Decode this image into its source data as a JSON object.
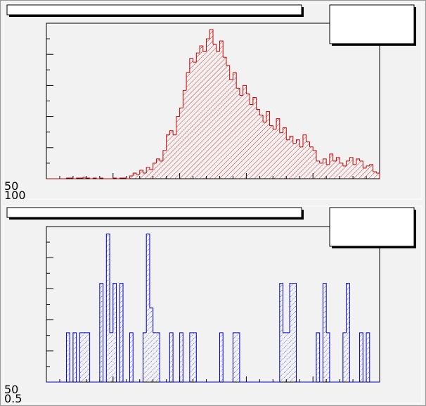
{
  "chart_data": [
    {
      "type": "histogram",
      "color": "#cc0000",
      "corner_labels": [
        "50",
        "100"
      ],
      "xlim": [
        0,
        100
      ],
      "ylim": [
        0,
        220
      ],
      "bins": [
        0,
        1,
        2,
        3,
        4,
        5,
        6,
        7,
        8,
        9,
        10,
        11,
        12,
        13,
        14,
        15,
        16,
        17,
        18,
        19,
        20,
        21,
        22,
        23,
        24,
        25,
        26,
        27,
        28,
        29,
        30,
        31,
        32,
        33,
        34,
        35,
        36,
        37,
        38,
        39,
        40,
        41,
        42,
        43,
        44,
        45,
        46,
        47,
        48,
        49,
        50,
        51,
        52,
        53,
        54,
        55,
        56,
        57,
        58,
        59,
        60,
        61,
        62,
        63,
        64,
        65,
        66,
        67,
        68,
        69,
        70,
        71,
        72,
        73,
        74,
        75,
        76,
        77,
        78,
        79,
        80,
        81,
        82,
        83,
        84,
        85,
        86,
        87,
        88,
        89,
        90,
        91,
        92,
        93,
        94,
        95,
        96,
        97,
        98,
        99,
        100
      ],
      "counts": [
        0,
        0,
        0,
        0,
        0,
        0,
        1,
        1,
        0,
        1,
        1,
        2,
        1,
        0,
        1,
        0,
        1,
        0,
        0,
        0,
        1,
        0,
        1,
        1,
        0,
        4,
        8,
        6,
        12,
        8,
        16,
        13,
        22,
        28,
        25,
        40,
        62,
        68,
        62,
        88,
        100,
        125,
        150,
        170,
        165,
        178,
        188,
        180,
        198,
        211,
        190,
        180,
        195,
        172,
        160,
        140,
        150,
        128,
        118,
        132,
        120,
        105,
        115,
        98,
        90,
        80,
        95,
        75,
        70,
        85,
        65,
        72,
        55,
        60,
        50,
        55,
        45,
        62,
        52,
        45,
        40,
        25,
        22,
        28,
        20,
        35,
        25,
        30,
        22,
        18,
        25,
        30,
        20,
        28,
        25,
        15,
        18,
        20,
        10,
        8
      ]
    },
    {
      "type": "histogram",
      "color": "#0000cc",
      "corner_labels": [
        "50",
        "0.5"
      ],
      "xlim": [
        0,
        100
      ],
      "ylim": [
        0,
        6.3
      ],
      "bins": [
        0,
        1,
        2,
        3,
        4,
        5,
        6,
        7,
        8,
        9,
        10,
        11,
        12,
        13,
        14,
        15,
        16,
        17,
        18,
        19,
        20,
        21,
        22,
        23,
        24,
        25,
        26,
        27,
        28,
        29,
        30,
        31,
        32,
        33,
        34,
        35,
        36,
        37,
        38,
        39,
        40,
        41,
        42,
        43,
        44,
        45,
        46,
        47,
        48,
        49,
        50,
        51,
        52,
        53,
        54,
        55,
        56,
        57,
        58,
        59,
        60,
        61,
        62,
        63,
        64,
        65,
        66,
        67,
        68,
        69,
        70,
        71,
        72,
        73,
        74,
        75,
        76,
        77,
        78,
        79,
        80,
        81,
        82,
        83,
        84,
        85,
        86,
        87,
        88,
        89,
        90,
        91,
        92,
        93,
        94,
        95,
        96,
        97,
        98,
        99,
        100
      ],
      "counts": [
        0,
        0,
        0,
        0,
        0,
        0,
        2,
        0,
        2,
        0,
        2,
        2,
        2,
        0,
        0,
        0,
        4,
        0,
        6,
        2,
        4,
        0,
        4,
        0,
        0,
        2,
        0,
        0,
        0,
        2,
        6,
        3,
        2,
        2,
        0,
        0,
        0,
        2,
        0,
        0,
        2,
        0,
        0,
        2,
        2,
        0,
        0,
        0,
        0,
        0,
        0,
        0,
        2,
        0,
        0,
        0,
        2,
        2,
        0,
        0,
        0,
        0,
        0,
        0,
        0,
        0,
        0,
        0,
        0,
        0,
        4,
        2,
        2,
        4,
        4,
        0,
        0,
        0,
        0,
        0,
        0,
        2,
        0,
        4,
        2,
        0,
        0,
        0,
        0,
        2,
        4,
        0,
        0,
        0,
        2,
        0,
        2,
        0,
        0,
        0
      ]
    }
  ]
}
